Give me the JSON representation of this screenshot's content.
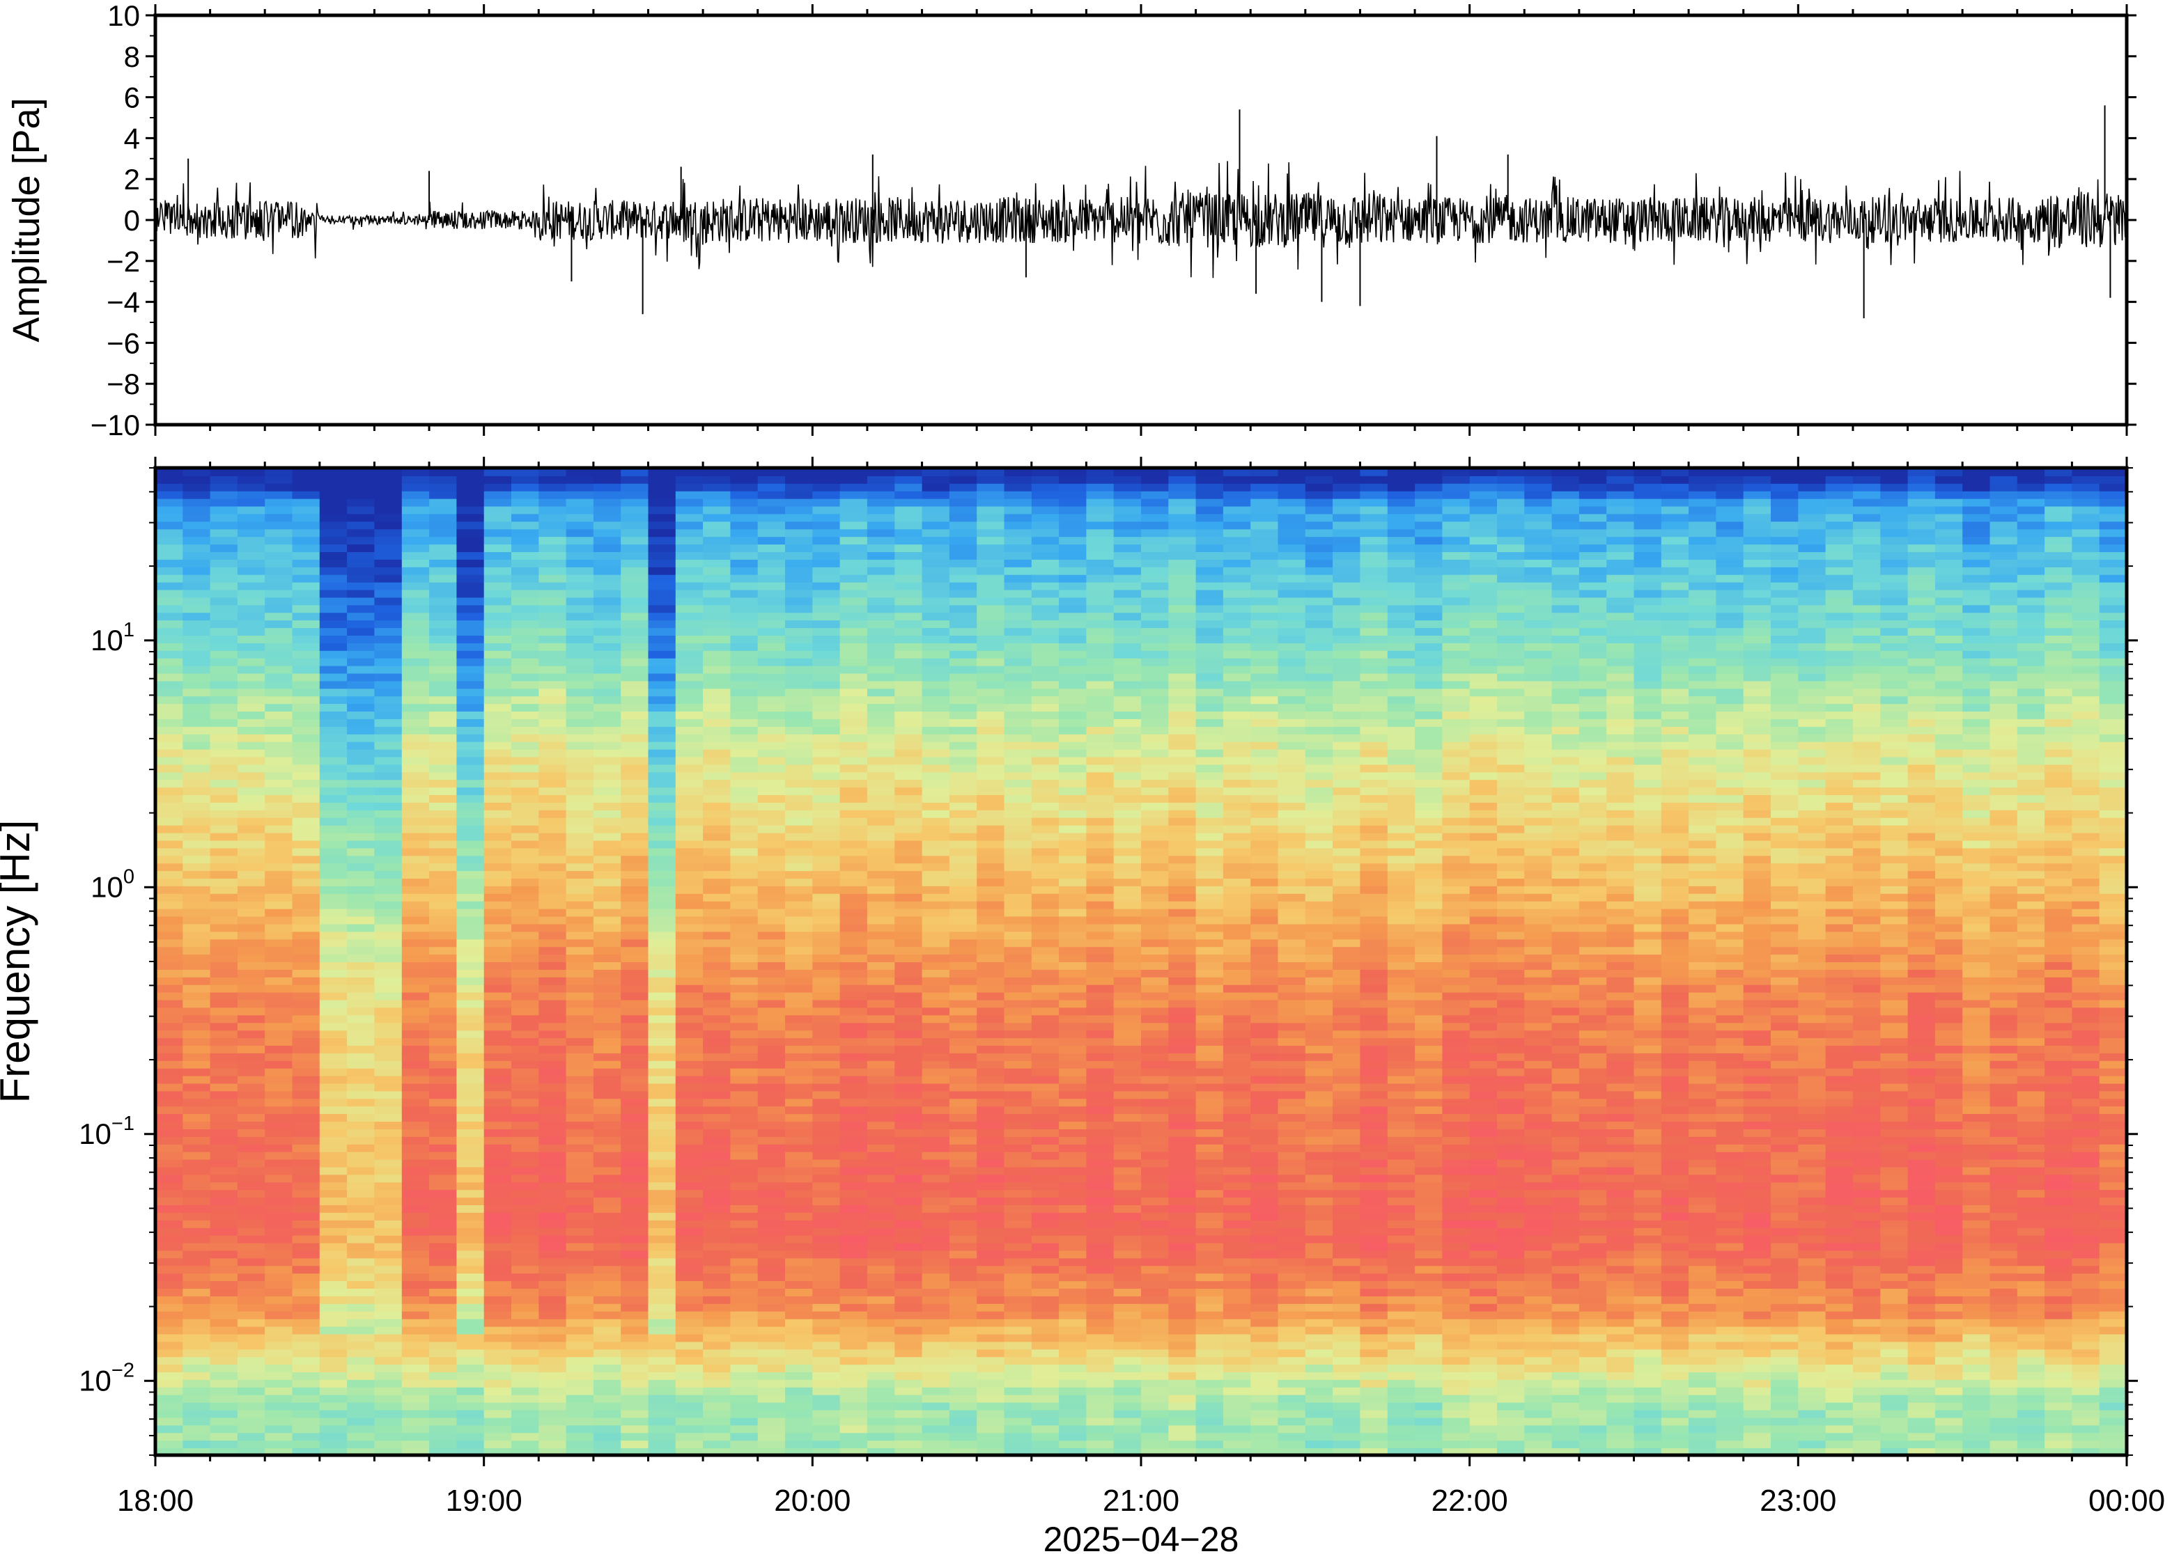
{
  "chart_data": [
    {
      "type": "line",
      "panel": "waveform",
      "ylabel": "Amplitude [Pa]",
      "ylim": [
        -10,
        10
      ],
      "yticks": [
        -10,
        -8,
        -6,
        -4,
        -2,
        0,
        2,
        4,
        6,
        8,
        10
      ],
      "ytick_labels": [
        "−10",
        "−8",
        "−6",
        "−4",
        "−2",
        "0",
        "2",
        "4",
        "6",
        "8",
        "10"
      ],
      "xlim": [
        "18:00",
        "00:00"
      ],
      "series_color": "#000000",
      "envelope_segments": [
        {
          "from": "18:00",
          "to": "18:30",
          "amp": 1.2
        },
        {
          "from": "18:30",
          "to": "18:50",
          "amp": 0.3
        },
        {
          "from": "18:50",
          "to": "19:10",
          "amp": 0.6
        },
        {
          "from": "19:10",
          "to": "19:35",
          "amp": 1.3
        },
        {
          "from": "19:35",
          "to": "21:00",
          "amp": 1.5
        },
        {
          "from": "21:00",
          "to": "21:45",
          "amp": 1.8
        },
        {
          "from": "21:45",
          "to": "23:45",
          "amp": 1.5
        },
        {
          "from": "23:45",
          "to": "00:00",
          "amp": 1.9
        }
      ],
      "spikes": [
        {
          "t": "18:06",
          "v": 3.0
        },
        {
          "t": "18:50",
          "v": 2.4
        },
        {
          "t": "19:16",
          "v": -3.0
        },
        {
          "t": "19:29",
          "v": -4.6
        },
        {
          "t": "19:36",
          "v": 2.6
        },
        {
          "t": "20:11",
          "v": 3.2
        },
        {
          "t": "20:39",
          "v": -2.8
        },
        {
          "t": "21:18",
          "v": 5.4
        },
        {
          "t": "21:21",
          "v": -3.6
        },
        {
          "t": "21:33",
          "v": -4.0
        },
        {
          "t": "21:40",
          "v": -4.2
        },
        {
          "t": "21:54",
          "v": 4.1
        },
        {
          "t": "22:07",
          "v": 3.2
        },
        {
          "t": "23:12",
          "v": -4.8
        },
        {
          "t": "23:56",
          "v": 5.6
        },
        {
          "t": "23:57",
          "v": -3.8
        }
      ]
    },
    {
      "type": "heatmap",
      "panel": "spectrogram",
      "ylabel": "Frequency [Hz]",
      "yscale": "log",
      "ylim": [
        0.005,
        50
      ],
      "yticks": [
        0.01,
        0.1,
        1,
        10
      ],
      "ytick_labels": [
        {
          "base": "10",
          "exp": "−2"
        },
        {
          "base": "10",
          "exp": "−1"
        },
        {
          "base": "10",
          "exp": "0"
        },
        {
          "base": "10",
          "exp": "1"
        }
      ],
      "colormap": [
        "#1a2fa8",
        "#1f63e0",
        "#39aaf0",
        "#6fd8d8",
        "#9ae6b0",
        "#e0ee98",
        "#f6c869",
        "#f59a50",
        "#f06a55",
        "#f85c67"
      ],
      "quiet_intervals": [
        [
          "18:30",
          "18:46"
        ],
        [
          "18:56",
          "19:02"
        ],
        [
          "19:32",
          "19:36"
        ]
      ]
    }
  ],
  "x_axis": {
    "tick_labels": [
      "18:00",
      "19:00",
      "20:00",
      "21:00",
      "22:00",
      "23:00",
      "00:00"
    ],
    "date_label": "2025−04−28"
  }
}
